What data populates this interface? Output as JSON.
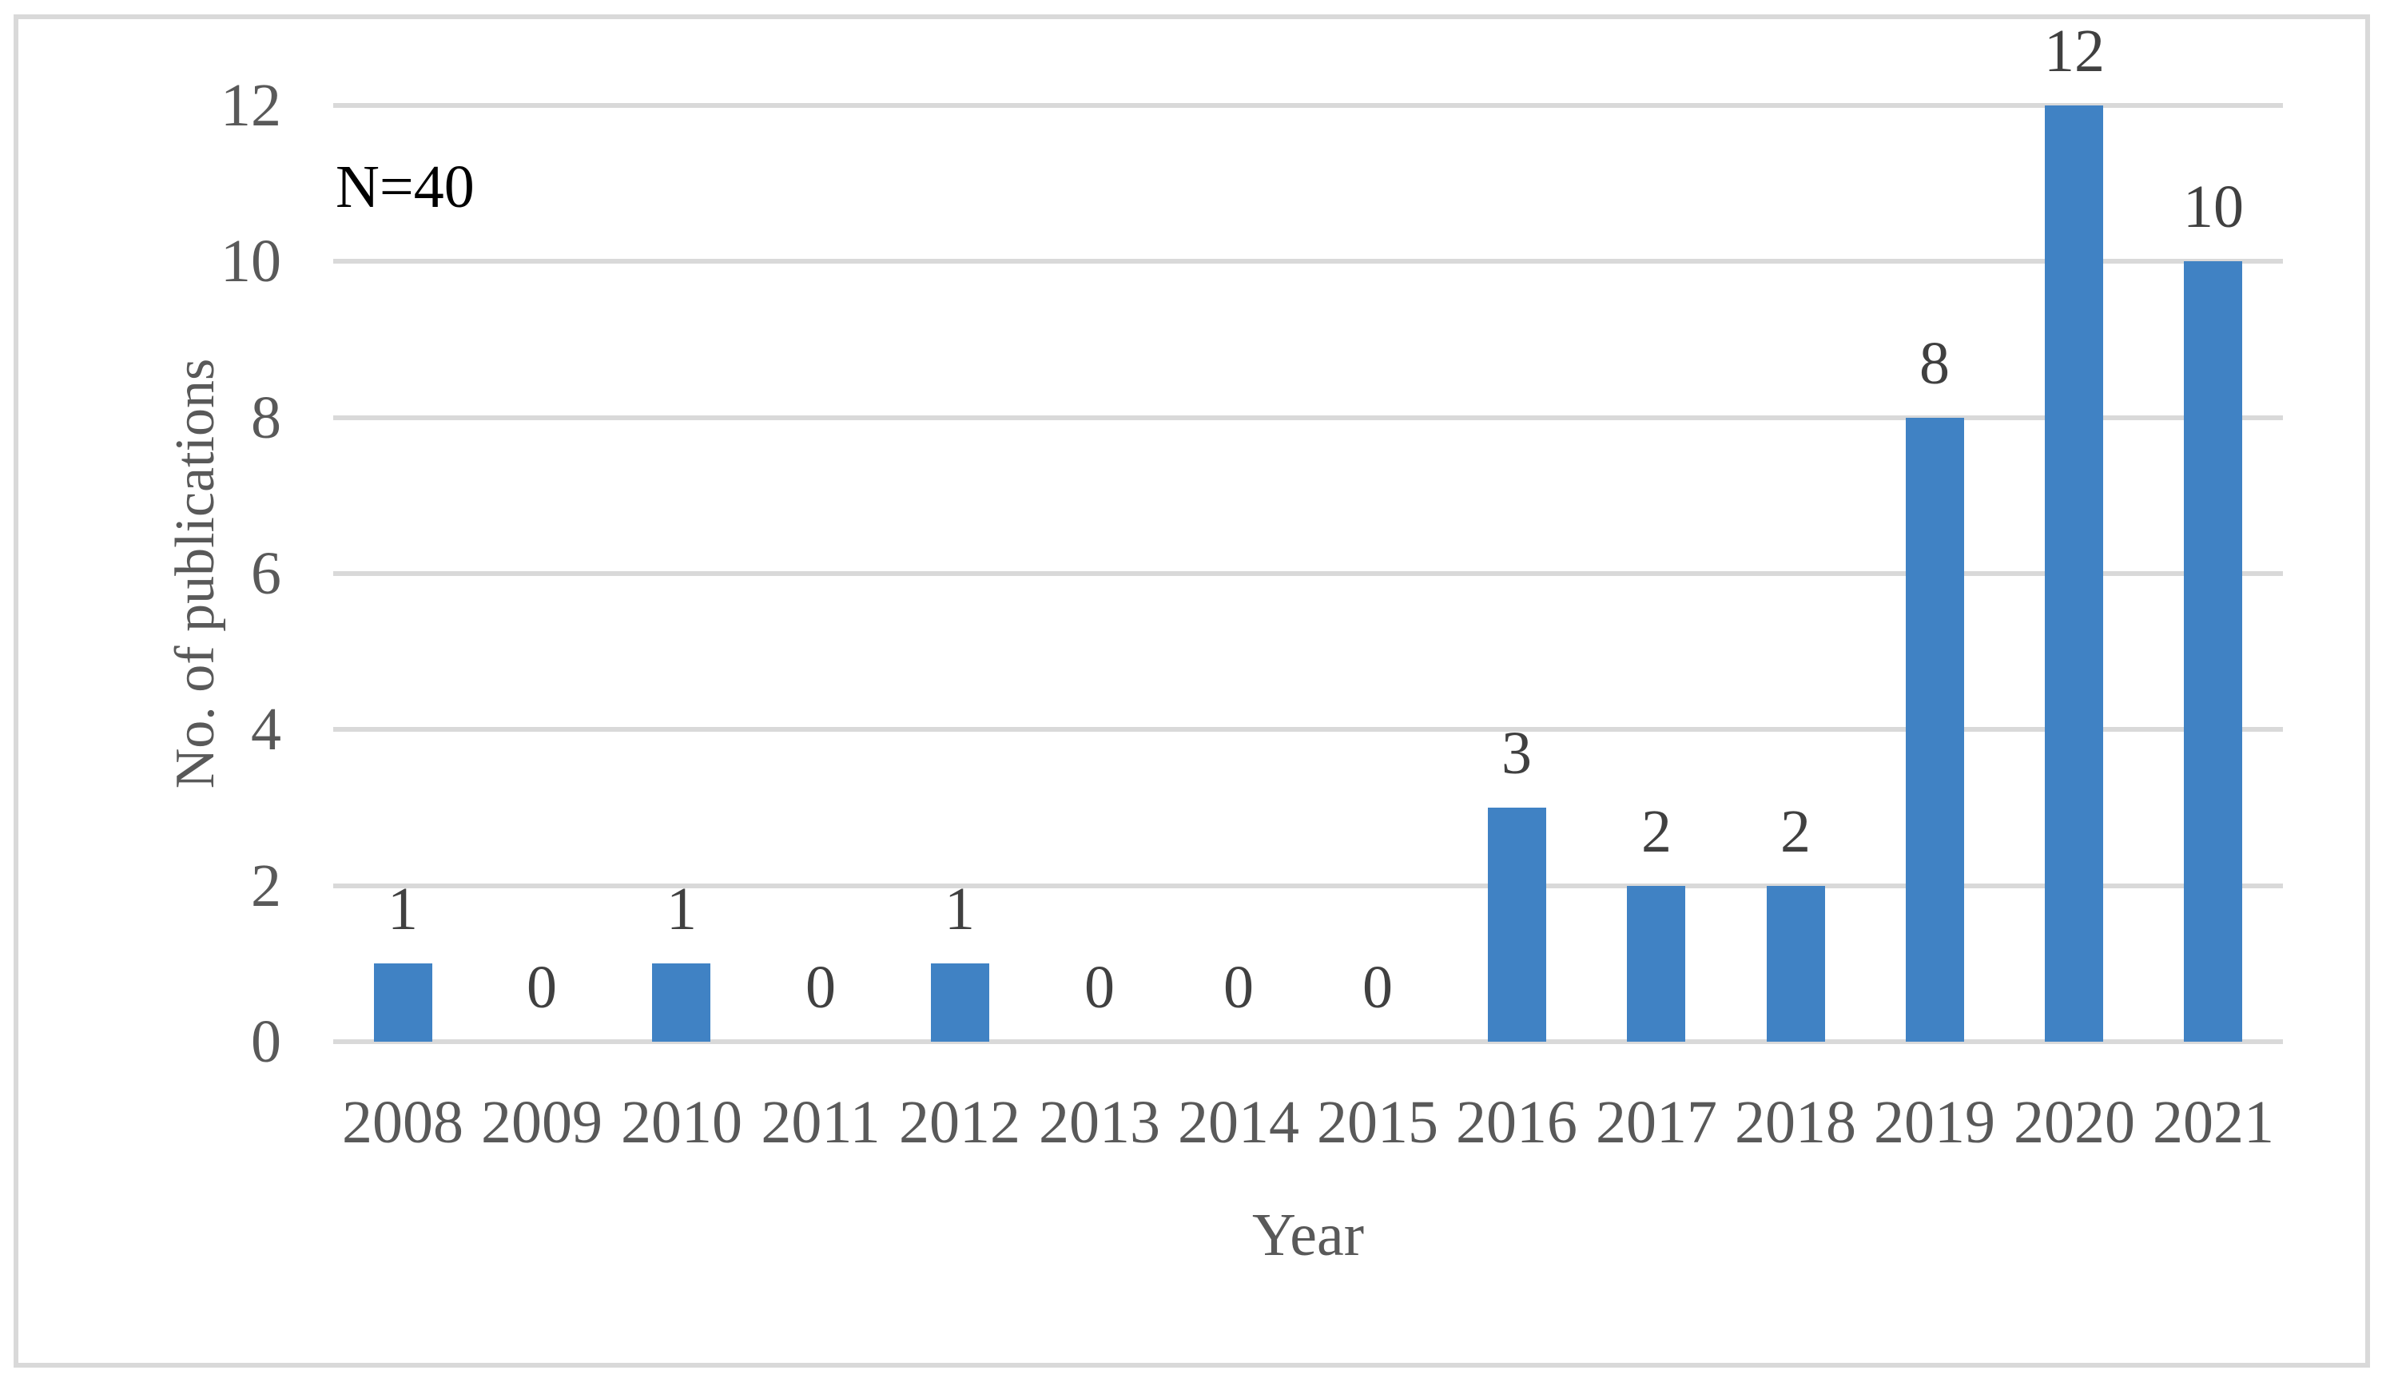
{
  "chart_data": {
    "type": "bar",
    "title": "",
    "annotation": "N=40",
    "xlabel": "Year",
    "ylabel": "No. of publications",
    "categories": [
      "2008",
      "2009",
      "2010",
      "2011",
      "2012",
      "2013",
      "2014",
      "2015",
      "2016",
      "2017",
      "2018",
      "2019",
      "2020",
      "2021"
    ],
    "values": [
      1,
      0,
      1,
      0,
      1,
      0,
      0,
      0,
      3,
      2,
      2,
      8,
      12,
      10
    ],
    "ylim": [
      0,
      12
    ],
    "yticks": [
      0,
      2,
      4,
      6,
      8,
      10,
      12
    ],
    "grid": true,
    "legend_position": "none",
    "colors": {
      "bar": "#4082C4",
      "gridline": "#D9D9D9",
      "plot_border": "#D9D9D9",
      "tick_text": "#595959",
      "axis_title_text": "#595959",
      "data_label_text": "#404040",
      "annotation_text": "#000000",
      "background": "#FFFFFF"
    }
  }
}
